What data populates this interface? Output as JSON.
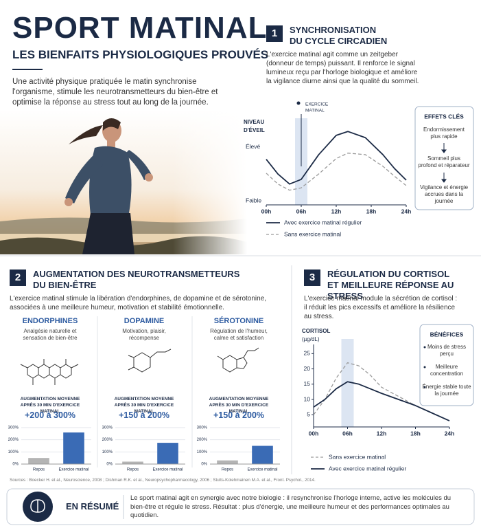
{
  "header": {
    "title": "SPORT MATINAL",
    "subtitle": "LES BIENFAITS PHYSIOLOGIQUES PROUVÉS",
    "intro": "Une activité physique pratiquée le matin synchronise l'organisme, stimule les neurotransmetteurs du bien-être et optimise la réponse au stress tout au long de la journée."
  },
  "section1": {
    "number": "1",
    "title": [
      "SYNCHRONISATION",
      "DU CYCLE CIRCADIEN"
    ],
    "text": "L'exercice matinal agit comme un zeitgeber (donneur de temps) puissant. Il renforce le signal lumineux reçu par l'horloge biologique et améliore la vigilance diurne ainsi que la qualité du sommeil.",
    "chart": {
      "type": "line",
      "y_label": [
        "NIVEAU",
        "D'ÉVEIL"
      ],
      "marker": {
        "label": [
          "EXERCICE",
          "MATINAL"
        ],
        "x": 6
      },
      "xlim": [
        0,
        24
      ],
      "xticks": [
        {
          "value": 0,
          "label": "00h"
        },
        {
          "value": 6,
          "label": "06h"
        },
        {
          "value": 12,
          "label": "12h"
        },
        {
          "value": 18,
          "label": "18h"
        },
        {
          "value": 24,
          "label": "24h"
        }
      ],
      "ylim": [
        0.05,
        1.1
      ],
      "yticks": [
        {
          "value": 0.8,
          "label": "Élevé"
        },
        {
          "value": 0.1,
          "label": "Faible"
        }
      ],
      "x": [
        0,
        2,
        4,
        6,
        9,
        12,
        14,
        17,
        20,
        22,
        24
      ],
      "series": [
        {
          "name": "Avec exercice matinal régulier",
          "color": "#1b2a45",
          "dashed": false,
          "values": [
            0.64,
            0.45,
            0.32,
            0.38,
            0.7,
            0.95,
            1.0,
            0.92,
            0.7,
            0.52,
            0.37
          ]
        },
        {
          "name": "Sans exercice matinal",
          "color": "#9a9a9a",
          "dashed": true,
          "values": [
            0.46,
            0.32,
            0.24,
            0.27,
            0.45,
            0.65,
            0.72,
            0.7,
            0.55,
            0.42,
            0.3
          ]
        }
      ]
    },
    "box": {
      "title": "EFFETS CLÉS",
      "items": [
        "Endormissement plus rapide",
        "Sommeil plus profond et réparateur",
        "Vigilance et énergie accrues dans la journée"
      ]
    }
  },
  "section2": {
    "number": "2",
    "title": [
      "AUGMENTATION DES NEUROTRANSMETTEURS",
      "DU BIEN-ÊTRE"
    ],
    "text": "L'exercice matinal stimule la libération d'endorphines, de dopamine et de sérotonine, associées à une meilleure humeur, motivation et stabilité émotionnelle.",
    "columns": [
      {
        "name": "ENDORPHINES",
        "desc": "Analgésie naturelle et sensation de bien-être",
        "label": "AUGMENTATION MOYENNE APRÈS 30 MIN D'EXERCICE MATINAL",
        "increase": "+200 à 300%",
        "chart": {
          "type": "bar",
          "categories": [
            "Repos",
            "Exercice matinal"
          ],
          "values": [
            50,
            260
          ],
          "colors": [
            "#b4b4b4",
            "#3a6bb5"
          ],
          "ylim": [
            0,
            300
          ],
          "yticks": [
            {
              "value": 0,
              "label": "0%"
            },
            {
              "value": 100,
              "label": "100%"
            },
            {
              "value": 200,
              "label": "200%"
            },
            {
              "value": 300,
              "label": "300%"
            }
          ]
        }
      },
      {
        "name": "DOPAMINE",
        "desc": "Motivation, plaisir, récompense",
        "label": "AUGMENTATION MOYENNE APRÈS 30 MIN D'EXERCICE MATINAL",
        "increase": "+150 à 200%",
        "chart": {
          "type": "bar",
          "categories": [
            "Repos",
            "Exercice matinal"
          ],
          "values": [
            20,
            175
          ],
          "colors": [
            "#b4b4b4",
            "#3a6bb5"
          ],
          "ylim": [
            0,
            300
          ],
          "yticks": [
            {
              "value": 0,
              "label": "0%"
            },
            {
              "value": 100,
              "label": "100%"
            },
            {
              "value": 200,
              "label": "200%"
            },
            {
              "value": 300,
              "label": "300%"
            }
          ]
        }
      },
      {
        "name": "SÉROTONINE",
        "desc": "Régulation de l'humeur, calme et satisfaction",
        "label": "AUGMENTATION MOYENNE APRÈS 30 MIN D'EXERCICE MATINAL",
        "increase": "+150 à 200%",
        "chart": {
          "type": "bar",
          "categories": [
            "Repos",
            "Exercice matinal"
          ],
          "values": [
            30,
            150
          ],
          "colors": [
            "#b4b4b4",
            "#3a6bb5"
          ],
          "ylim": [
            0,
            300
          ],
          "yticks": [
            {
              "value": 0,
              "label": "0%"
            },
            {
              "value": 100,
              "label": "100%"
            },
            {
              "value": 200,
              "label": "200%"
            },
            {
              "value": 300,
              "label": "300%"
            }
          ]
        }
      }
    ]
  },
  "section3": {
    "number": "3",
    "title": [
      "RÉGULATION DU CORTISOL",
      "ET MEILLEURE RÉPONSE AU STRESS"
    ],
    "text": "L'exercice matinal module la sécrétion de cortisol : il réduit les pics excessifs et améliore la résilience au stress.",
    "chart": {
      "type": "line",
      "y_label": [
        "CORTISOL",
        "(µg/dL)"
      ],
      "highlight_x": 6,
      "xlim": [
        0,
        24
      ],
      "xticks": [
        {
          "value": 0,
          "label": "00h"
        },
        {
          "value": 6,
          "label": "06h"
        },
        {
          "value": 12,
          "label": "12h"
        },
        {
          "value": 18,
          "label": "18h"
        },
        {
          "value": 24,
          "label": "24h"
        }
      ],
      "ylim": [
        1,
        28
      ],
      "yticks": [
        5,
        10,
        15,
        20,
        25
      ],
      "x": [
        0,
        2,
        4,
        6,
        8,
        10,
        12,
        15,
        18,
        21,
        24
      ],
      "series": [
        {
          "name": "Sans exercice matinal",
          "color": "#9a9a9a",
          "dashed": true,
          "values": [
            5,
            10,
            17,
            22,
            21,
            18,
            14,
            11,
            8,
            5.5,
            3
          ]
        },
        {
          "name": "Avec exercice matinal régulier",
          "color": "#1b2a45",
          "dashed": false,
          "values": [
            7.5,
            10,
            13.5,
            15.8,
            15,
            13.5,
            12,
            10,
            8,
            5.5,
            3
          ]
        }
      ]
    },
    "box": {
      "title": "BÉNÉFICES",
      "items": [
        "Moins de stress perçu",
        "Meilleure concentration",
        "Énergie stable toute la journée"
      ]
    }
  },
  "sources": "Sources : Boecker H. et al., Neuroscience, 2008 ; Dishman R.K. et al., Neuropsychopharmacology, 2006 ; Stults-Kolehmainen M.A. et al., Front. Psychol., 2014.",
  "summary": {
    "title": "EN RÉSUMÉ",
    "text": "Le sport matinal agit en synergie avec notre biologie : il resynchronise l'horloge interne, active les molécules du bien-être et régule le stress. Résultat : plus d'énergie, une meilleure humeur et des performances optimales au quotidien."
  }
}
